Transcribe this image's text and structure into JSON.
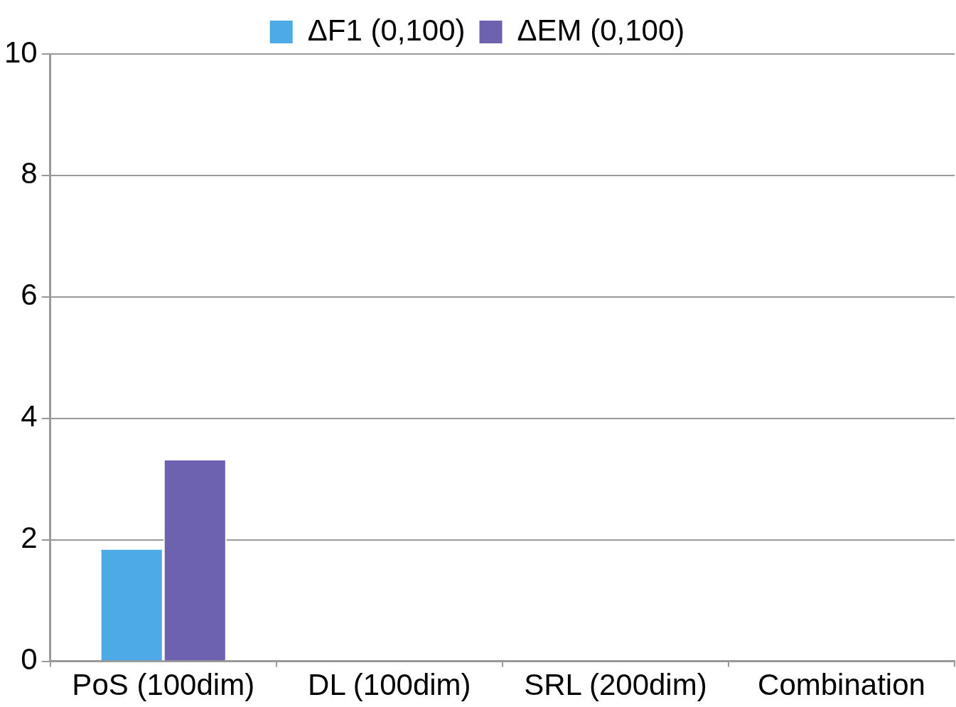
{
  "chart_data": {
    "type": "bar",
    "categories": [
      "PoS (100dim)",
      "DL (100dim)",
      "SRL (200dim)",
      "Combination"
    ],
    "series": [
      {
        "name": "ΔF1 (0,100)",
        "color": "#4eaae6",
        "values": [
          1.86,
          null,
          null,
          null
        ]
      },
      {
        "name": "ΔEM (0,100)",
        "color": "#6c62b0",
        "values": [
          3.33,
          null,
          null,
          null
        ]
      }
    ],
    "ylim": [
      0,
      10
    ],
    "yticks": [
      0,
      2,
      4,
      6,
      8,
      10
    ],
    "grid": "y",
    "legend": "top"
  }
}
